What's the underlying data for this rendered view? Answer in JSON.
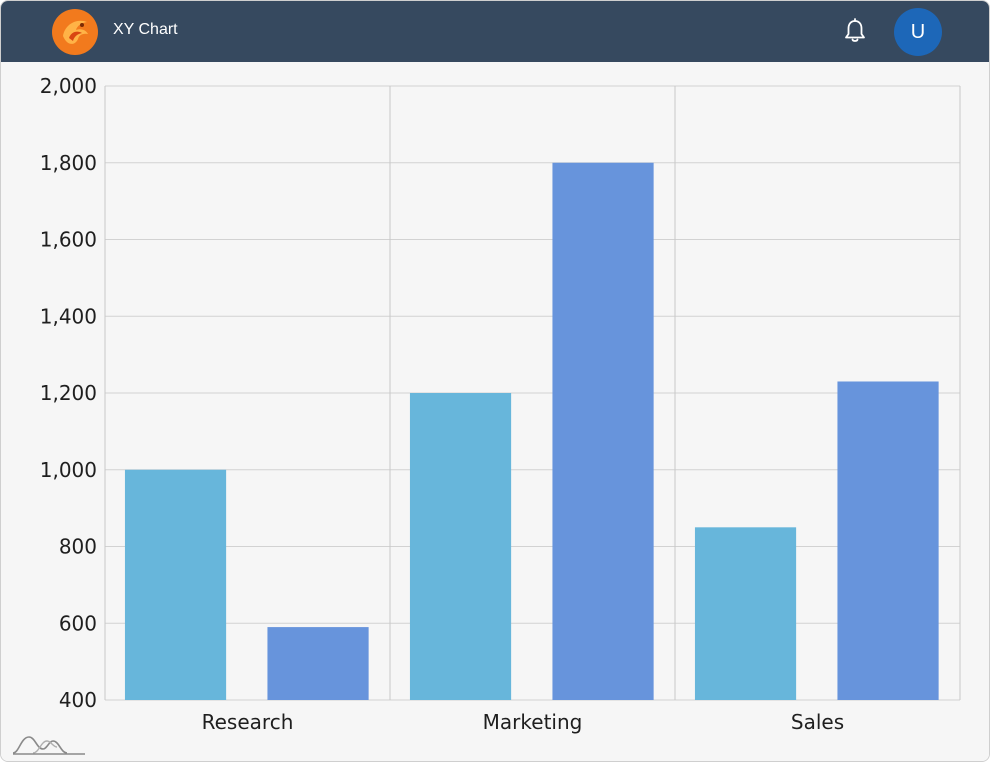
{
  "header": {
    "title": "XY Chart",
    "avatar_letter": "U",
    "logo_icon": "phoenix-logo-icon",
    "bell_icon": "bell-icon",
    "background_color": "#36495f",
    "avatar_color": "#1d67b8"
  },
  "chart_data": {
    "type": "bar",
    "categories": [
      "Research",
      "Marketing",
      "Sales"
    ],
    "series": [
      {
        "values": [
          1000,
          1200,
          850
        ],
        "color": "#67b6db"
      },
      {
        "values": [
          590,
          1800,
          1230
        ],
        "color": "#6794dc"
      }
    ],
    "y_ticks": [
      "400",
      "600",
      "800",
      "1,000",
      "1,200",
      "1,400",
      "1,600",
      "1,800",
      "2,000"
    ],
    "ylim": [
      400,
      2000
    ],
    "grid": true,
    "title": "",
    "xlabel": "",
    "ylabel": ""
  }
}
